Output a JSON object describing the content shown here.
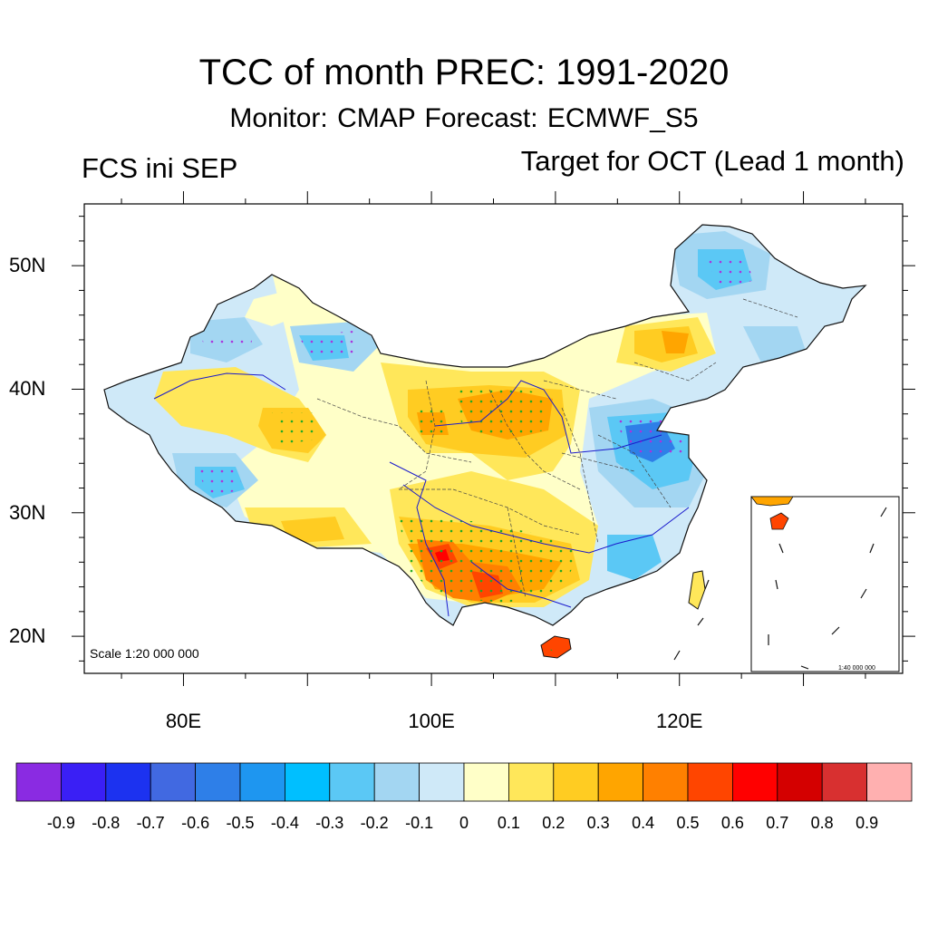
{
  "title": "TCC of month PREC: 1991-2020",
  "subtitle": "Monitor: CMAP   Forecast: ECMWF_S5",
  "left_label": "FCS ini SEP",
  "right_label": "Target for OCT (Lead 1 month)",
  "scale_main": "Scale 1:20 000 000",
  "scale_inset": "1:40 000 000",
  "axes": {
    "lat_labels": [
      "50N",
      "40N",
      "30N",
      "20N"
    ],
    "lat_values": [
      50,
      40,
      30,
      20
    ],
    "lon_labels": [
      "80E",
      "100E",
      "120E"
    ],
    "lon_values": [
      80,
      100,
      120
    ],
    "lon_range": [
      72,
      138
    ],
    "lat_range": [
      17,
      55
    ]
  },
  "colorbar": {
    "labels": [
      "-0.9",
      "-0.8",
      "-0.7",
      "-0.6",
      "-0.5",
      "-0.4",
      "-0.3",
      "-0.2",
      "-0.1",
      "0",
      "0.1",
      "0.2",
      "0.3",
      "0.4",
      "0.5",
      "0.6",
      "0.7",
      "0.8",
      "0.9"
    ],
    "colors": [
      "#8a2be2",
      "#3a1ff5",
      "#1c32f0",
      "#4169e1",
      "#2e7fe8",
      "#1e96f0",
      "#00bfff",
      "#5bc8f5",
      "#a3d6f2",
      "#cfe9f8",
      "#ffffc8",
      "#ffe75a",
      "#ffcc22",
      "#ffa500",
      "#ff8000",
      "#ff4500",
      "#ff0000",
      "#d40000",
      "#d83030",
      "#ffb0b0"
    ]
  }
}
